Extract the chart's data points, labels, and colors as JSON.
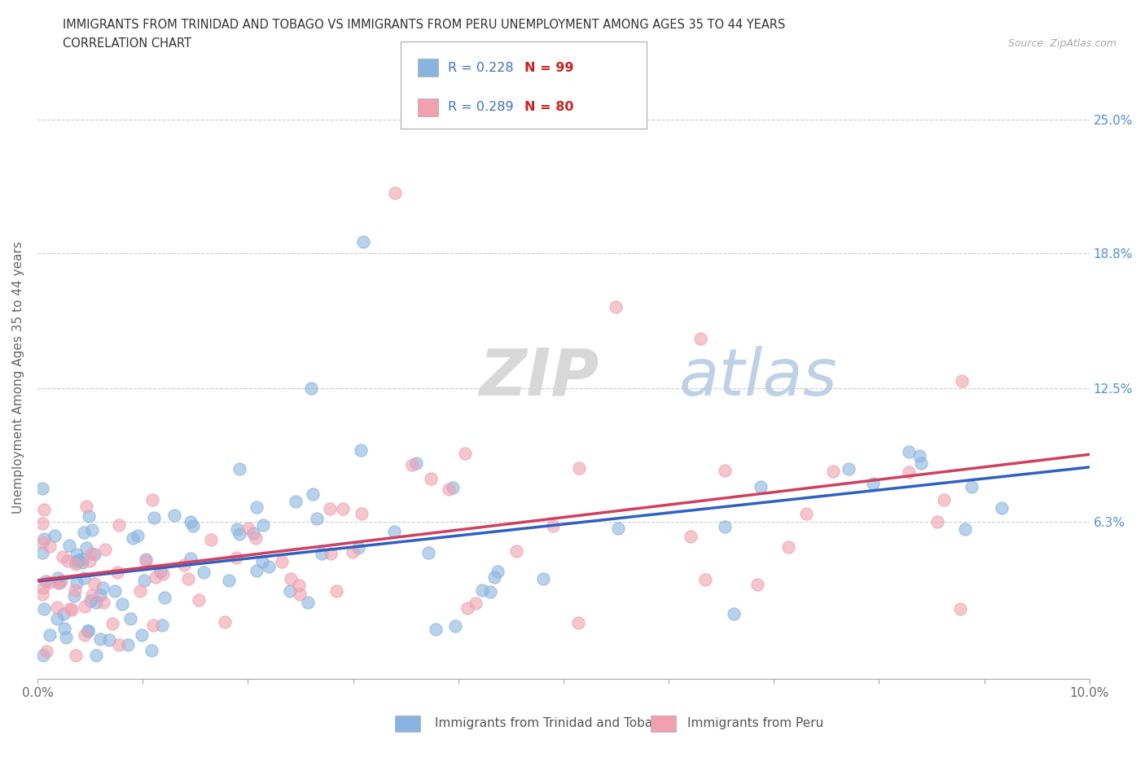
{
  "title_line1": "IMMIGRANTS FROM TRINIDAD AND TOBAGO VS IMMIGRANTS FROM PERU UNEMPLOYMENT AMONG AGES 35 TO 44 YEARS",
  "title_line2": "CORRELATION CHART",
  "source_text": "Source: ZipAtlas.com",
  "ylabel": "Unemployment Among Ages 35 to 44 years",
  "xlim": [
    0.0,
    0.1
  ],
  "ylim": [
    -0.01,
    0.27
  ],
  "xticks": [
    0.0,
    0.01,
    0.02,
    0.03,
    0.04,
    0.05,
    0.06,
    0.07,
    0.08,
    0.09,
    0.1
  ],
  "xticklabels": [
    "0.0%",
    "",
    "",
    "",
    "",
    "",
    "",
    "",
    "",
    "",
    "10.0%"
  ],
  "ytick_positions": [
    0.063,
    0.125,
    0.188,
    0.25
  ],
  "ytick_labels": [
    "6.3%",
    "12.5%",
    "18.8%",
    "25.0%"
  ],
  "color_tt": "#8ab4e0",
  "color_peru": "#f0a0b0",
  "color_tt_line": "#3060c0",
  "color_peru_line": "#d04060",
  "legend_r_tt": "R = 0.228",
  "legend_n_tt": "N = 99",
  "legend_r_peru": "R = 0.289",
  "legend_n_peru": "N = 80",
  "watermark_zip": "ZIP",
  "watermark_atlas": "atlas",
  "legend_r_color": "#4070c0",
  "legend_n_color": "#cc2020"
}
